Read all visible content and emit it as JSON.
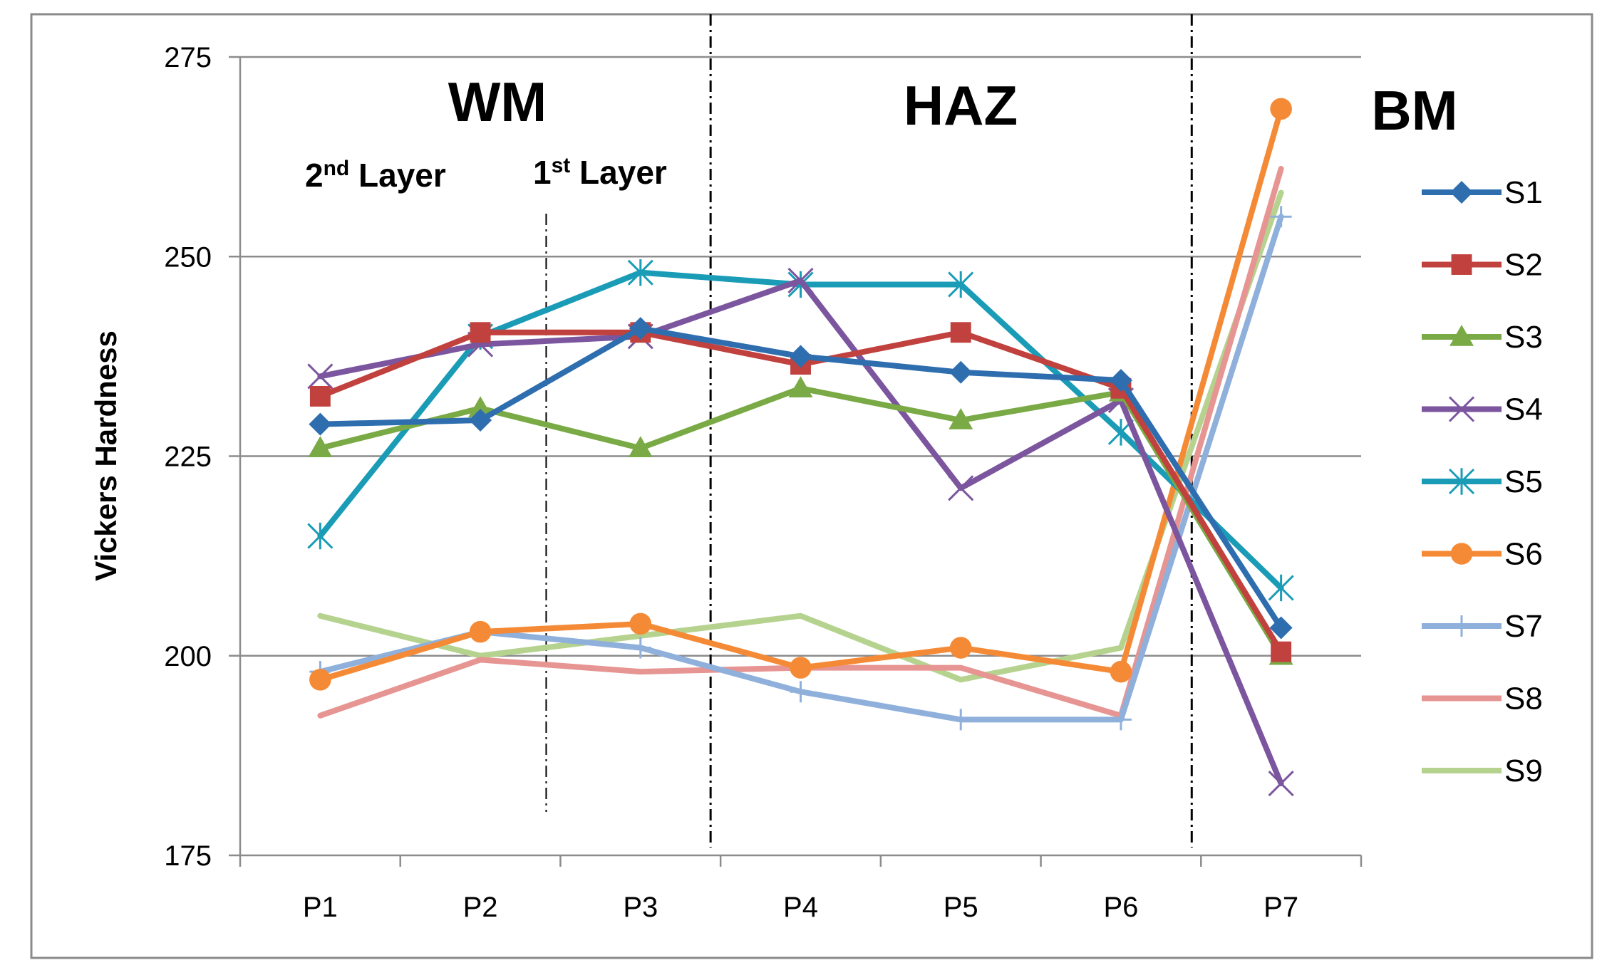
{
  "chart_data": {
    "type": "line",
    "title": "",
    "xlabel": "",
    "ylabel": "Vickers Hardness",
    "ylim": [
      175,
      275
    ],
    "yticks": [
      175,
      200,
      225,
      250,
      275
    ],
    "grid": true,
    "legend_position": "right",
    "categories": [
      "P1",
      "P2",
      "P3",
      "P4",
      "P5",
      "P6",
      "P7"
    ],
    "regions": [
      {
        "label": "WM"
      },
      {
        "label": "HAZ"
      },
      {
        "label": "BM"
      }
    ],
    "layers": [
      {
        "num": "2",
        "sup": "nd",
        "text": " Layer"
      },
      {
        "num": "1",
        "sup": "st",
        "text": " Layer"
      }
    ],
    "series": [
      {
        "name": "S1",
        "color": "#2E6EAF",
        "marker": "diamond",
        "values": [
          229,
          229.5,
          241,
          237.5,
          235.5,
          234.5,
          203.5
        ]
      },
      {
        "name": "S2",
        "color": "#C0413D",
        "marker": "square",
        "values": [
          232.5,
          240.5,
          240.5,
          236.5,
          240.5,
          233.5,
          200.5
        ]
      },
      {
        "name": "S3",
        "color": "#7AAA45",
        "marker": "triangle",
        "values": [
          226,
          231,
          226,
          233.5,
          229.5,
          233,
          200
        ]
      },
      {
        "name": "S4",
        "color": "#7B559E",
        "marker": "x",
        "values": [
          235,
          239,
          240,
          247,
          221,
          232,
          184
        ]
      },
      {
        "name": "S5",
        "color": "#1A9CB7",
        "marker": "asterisk",
        "values": [
          215,
          240,
          248,
          246.5,
          246.5,
          228,
          208.5
        ]
      },
      {
        "name": "S6",
        "color": "#F58A36",
        "marker": "circle",
        "values": [
          197,
          203,
          204,
          198.5,
          201,
          198,
          268.5
        ]
      },
      {
        "name": "S7",
        "color": "#8FB0DB",
        "marker": "plus",
        "values": [
          198,
          203,
          201,
          195.5,
          192,
          192,
          255
        ]
      },
      {
        "name": "S8",
        "color": "#E69593",
        "marker": "none",
        "values": [
          192.5,
          199.5,
          198,
          198.5,
          198.5,
          192.5,
          261
        ]
      },
      {
        "name": "S9",
        "color": "#B5D38F",
        "marker": "none",
        "values": [
          205,
          200,
          202.5,
          205,
          197,
          201,
          258
        ]
      }
    ]
  }
}
